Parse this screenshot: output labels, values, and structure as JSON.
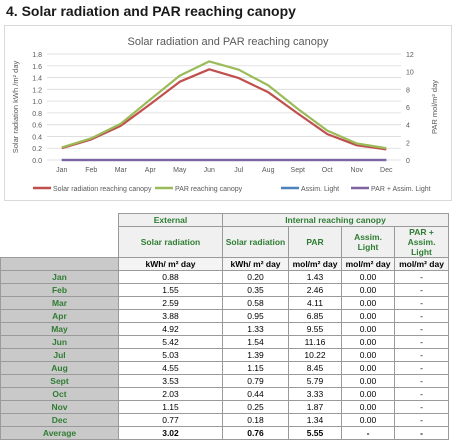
{
  "heading": "4. Solar radiation and PAR reaching canopy",
  "chart_data": {
    "type": "line",
    "title": "Solar radiation and PAR reaching canopy",
    "xlabel": "",
    "ylabel": "Solar radiation kWh /m² day",
    "ylabel_right": "PAR mol/m² day",
    "categories": [
      "Jan",
      "Feb",
      "Mar",
      "Apr",
      "May",
      "Jun",
      "Jul",
      "Aug",
      "Sept",
      "Oct",
      "Nov",
      "Dec"
    ],
    "ylim": [
      0,
      1.8
    ],
    "yticks": [
      "0.0",
      "0.2",
      "0.4",
      "0.6",
      "0.8",
      "1.0",
      "1.2",
      "1.4",
      "1.6",
      "1.8"
    ],
    "ylim_right": [
      0,
      12
    ],
    "yticks_right": [
      "0",
      "2",
      "4",
      "6",
      "8",
      "10",
      "12"
    ],
    "grid": true,
    "legend_position": "bottom",
    "series": [
      {
        "name": "Solar radiation reaching canopy",
        "axis": "left",
        "color": "#c0504d",
        "values": [
          0.2,
          0.35,
          0.58,
          0.95,
          1.33,
          1.54,
          1.39,
          1.15,
          0.79,
          0.44,
          0.25,
          0.18
        ]
      },
      {
        "name": "PAR reaching canopy",
        "axis": "right",
        "color": "#9bbb59",
        "values": [
          1.43,
          2.46,
          4.11,
          6.85,
          9.55,
          11.16,
          10.22,
          8.45,
          5.79,
          3.33,
          1.87,
          1.34
        ]
      },
      {
        "name": "Assim. Light",
        "axis": "right",
        "color": "#4f81bd",
        "values": [
          0,
          0,
          0,
          0,
          0,
          0,
          0,
          0,
          0,
          0,
          0,
          0
        ]
      },
      {
        "name": "PAR + Assim. Light",
        "axis": "right",
        "color": "#8064a2",
        "values": [
          0,
          0,
          0,
          0,
          0,
          0,
          0,
          0,
          0,
          0,
          0,
          0
        ]
      }
    ]
  },
  "table": {
    "group_external": "External",
    "group_internal": "Internal reaching canopy",
    "headers": [
      "Solar radiation",
      "Solar radiation",
      "PAR",
      "Assim. Light",
      "PAR + Assim. Light"
    ],
    "units": [
      "kWh/ m² day",
      "kWh/ m² day",
      "mol/m² day",
      "mol/m² day",
      "mol/m² day"
    ],
    "rows": [
      {
        "label": "Jan",
        "cells": [
          "0.88",
          "0.20",
          "1.43",
          "0.00",
          "-"
        ]
      },
      {
        "label": "Feb",
        "cells": [
          "1.55",
          "0.35",
          "2.46",
          "0.00",
          "-"
        ]
      },
      {
        "label": "Mar",
        "cells": [
          "2.59",
          "0.58",
          "4.11",
          "0.00",
          "-"
        ]
      },
      {
        "label": "Apr",
        "cells": [
          "3.88",
          "0.95",
          "6.85",
          "0.00",
          "-"
        ]
      },
      {
        "label": "May",
        "cells": [
          "4.92",
          "1.33",
          "9.55",
          "0.00",
          "-"
        ]
      },
      {
        "label": "Jun",
        "cells": [
          "5.42",
          "1.54",
          "11.16",
          "0.00",
          "-"
        ]
      },
      {
        "label": "Jul",
        "cells": [
          "5.03",
          "1.39",
          "10.22",
          "0.00",
          "-"
        ]
      },
      {
        "label": "Aug",
        "cells": [
          "4.55",
          "1.15",
          "8.45",
          "0.00",
          "-"
        ]
      },
      {
        "label": "Sept",
        "cells": [
          "3.53",
          "0.79",
          "5.79",
          "0.00",
          "-"
        ]
      },
      {
        "label": "Oct",
        "cells": [
          "2.03",
          "0.44",
          "3.33",
          "0.00",
          "-"
        ]
      },
      {
        "label": "Nov",
        "cells": [
          "1.15",
          "0.25",
          "1.87",
          "0.00",
          "-"
        ]
      },
      {
        "label": "Dec",
        "cells": [
          "0.77",
          "0.18",
          "1.34",
          "0.00",
          "-"
        ]
      },
      {
        "label": "Average",
        "cells": [
          "3.02",
          "0.76",
          "5.55",
          "-",
          "-"
        ]
      }
    ]
  }
}
